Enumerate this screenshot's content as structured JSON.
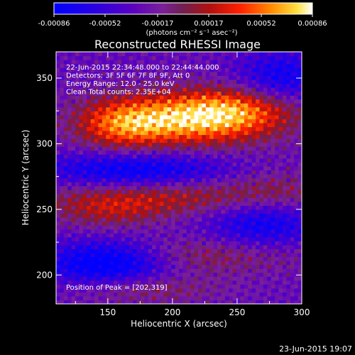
{
  "chart_data": {
    "type": "heatmap",
    "title": "Reconstructed RHESSI Image",
    "xlabel": "Heliocentric X (arcsec)",
    "ylabel": "Heliocentric Y (arcsec)",
    "xlim": [
      110,
      300
    ],
    "ylim": [
      178,
      370
    ],
    "x_ticks": [
      150,
      200,
      250,
      300
    ],
    "y_ticks": [
      200,
      250,
      300,
      350
    ],
    "colorbar": {
      "ticks": [
        "-0.00086",
        "-0.00052",
        "-0.00017",
        "0.00017",
        "0.00052",
        "0.00086"
      ],
      "min": -0.00086,
      "max": 0.00086,
      "unit_label": "(photons cm⁻² s⁻¹ asec⁻²)"
    },
    "annotations": [
      "22-Jun-2015 22:34:48.000 to 22:44:44.000",
      "Detectors: 3F 5F 6F 7F 8F 9F, Att 0",
      "Energy Range: 12.0 - 25.0 keV",
      "Clean    Total counts: 2.35E+04"
    ],
    "peak_text": "Position of Peak = [202,319]",
    "peak": [
      202,
      319
    ],
    "features": [
      {
        "x": 215,
        "y": 318,
        "sx": 45,
        "sy": 14,
        "amp": 0.00086
      },
      {
        "x": 160,
        "y": 315,
        "sx": 25,
        "sy": 14,
        "amp": 0.00055
      },
      {
        "x": 250,
        "y": 328,
        "sx": 35,
        "sy": 12,
        "amp": 0.0005
      },
      {
        "x": 200,
        "y": 260,
        "sx": 70,
        "sy": 10,
        "amp": 0.00045
      },
      {
        "x": 150,
        "y": 248,
        "sx": 30,
        "sy": 10,
        "amp": 0.0003
      },
      {
        "x": 220,
        "y": 215,
        "sx": 60,
        "sy": 10,
        "amp": 0.00035
      },
      {
        "x": 180,
        "y": 190,
        "sx": 40,
        "sy": 8,
        "amp": 0.0003
      },
      {
        "x": 280,
        "y": 265,
        "sx": 25,
        "sy": 12,
        "amp": 0.0002
      },
      {
        "x": 170,
        "y": 280,
        "sx": 50,
        "sy": 10,
        "amp": -0.0006
      },
      {
        "x": 150,
        "y": 210,
        "sx": 35,
        "sy": 12,
        "amp": -0.0008
      },
      {
        "x": 270,
        "y": 240,
        "sx": 30,
        "sy": 15,
        "amp": -0.0005
      },
      {
        "x": 285,
        "y": 350,
        "sx": 25,
        "sy": 15,
        "amp": -0.0005
      }
    ]
  },
  "footer": {
    "timestamp": "23-Jun-2015 19:07"
  }
}
